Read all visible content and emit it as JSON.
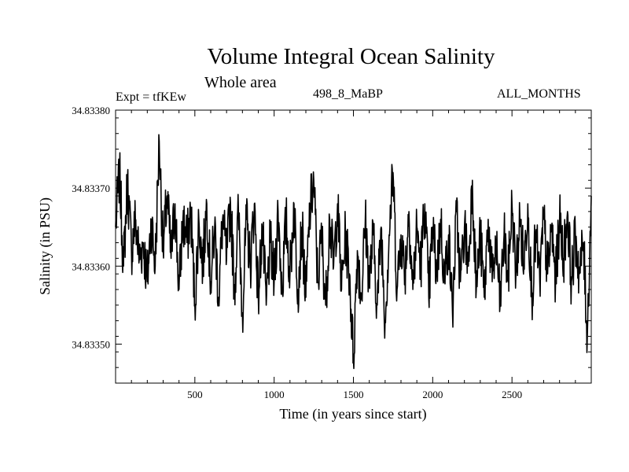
{
  "header": {
    "expt": "Expt = tfKEw",
    "run": "498_8_MaBP",
    "months": "ALL_MONTHS"
  },
  "chart_data": {
    "type": "line",
    "title": "Volume Integral Ocean Salinity",
    "subtitle": "Whole area",
    "xlabel": "Time (in years since start)",
    "ylabel": "Salinity (in PSU)",
    "xlim": [
      0,
      3000
    ],
    "ylim": [
      34.83345,
      34.8338
    ],
    "xticks": [
      500,
      1000,
      1500,
      2000,
      2500
    ],
    "yticks": [
      34.8335,
      34.8336,
      34.8337,
      34.8338
    ],
    "ytick_labels": [
      "34.83350",
      "34.83360",
      "34.83370",
      "34.83380"
    ],
    "grid": false,
    "color": "#000000",
    "series": [
      {
        "x": [
          0,
          25,
          50,
          75,
          100,
          125,
          150,
          175,
          200,
          225,
          250,
          275,
          300,
          325,
          350,
          375,
          400,
          425,
          450,
          475,
          500,
          525,
          550,
          575,
          600,
          625,
          650,
          675,
          700,
          725,
          750,
          775,
          800,
          825,
          850,
          875,
          900,
          925,
          950,
          975,
          1000,
          1025,
          1050,
          1075,
          1100,
          1125,
          1150,
          1175,
          1200,
          1225,
          1250,
          1275,
          1300,
          1325,
          1350,
          1375,
          1400,
          1425,
          1450,
          1475,
          1500,
          1525,
          1550,
          1575,
          1600,
          1625,
          1650,
          1675,
          1700,
          1725,
          1750,
          1775,
          1800,
          1825,
          1850,
          1875,
          1900,
          1925,
          1950,
          1975,
          2000,
          2025,
          2050,
          2075,
          2100,
          2125,
          2150,
          2175,
          2200,
          2225,
          2250,
          2275,
          2300,
          2325,
          2350,
          2375,
          2400,
          2425,
          2450,
          2475,
          2500,
          2525,
          2550,
          2575,
          2600,
          2625,
          2650,
          2675,
          2700,
          2725,
          2750,
          2775,
          2800,
          2825,
          2850,
          2875,
          2900,
          2925,
          2950,
          2975,
          3000
        ],
        "values": [
          34.83365,
          34.83372,
          34.8336,
          34.83371,
          34.83362,
          34.83366,
          34.83361,
          34.83363,
          34.83358,
          34.83366,
          34.8336,
          34.83376,
          34.83362,
          34.83369,
          34.83361,
          34.83368,
          34.83357,
          34.83366,
          34.83363,
          34.83367,
          34.83355,
          34.83366,
          34.8336,
          34.83368,
          34.83358,
          34.83365,
          34.83356,
          34.83366,
          34.83361,
          34.83368,
          34.83357,
          34.83367,
          34.83354,
          34.83366,
          34.8336,
          34.83368,
          34.83356,
          34.83365,
          34.83355,
          34.83363,
          34.83358,
          34.83367,
          34.83357,
          34.83366,
          34.83359,
          34.83368,
          34.83357,
          34.83365,
          34.83356,
          34.83367,
          34.83371,
          34.83358,
          34.83364,
          34.83355,
          34.83366,
          34.8336,
          34.83368,
          34.83357,
          34.83364,
          34.83359,
          34.83348,
          34.83362,
          34.83356,
          34.83366,
          34.83358,
          34.83364,
          34.83355,
          34.83365,
          34.83353,
          34.83364,
          34.83372,
          34.83357,
          34.83364,
          34.83359,
          34.83367,
          34.83357,
          34.83365,
          34.8336,
          34.83368,
          34.83356,
          34.83365,
          34.83359,
          34.83366,
          34.83358,
          34.83364,
          34.83354,
          34.83367,
          34.83358,
          34.83365,
          34.8336,
          34.83371,
          34.83357,
          34.83364,
          34.83356,
          34.83366,
          34.83358,
          34.83363,
          34.83355,
          34.83364,
          34.83358,
          34.83368,
          34.83359,
          34.83366,
          34.8336,
          34.83368,
          34.83356,
          34.83364,
          34.83358,
          34.83366,
          34.83359,
          34.83365,
          34.83358,
          34.83366,
          34.83361,
          34.83367,
          34.83358,
          34.83364,
          34.83359,
          34.83363,
          34.83351,
          34.83369
        ]
      }
    ]
  }
}
